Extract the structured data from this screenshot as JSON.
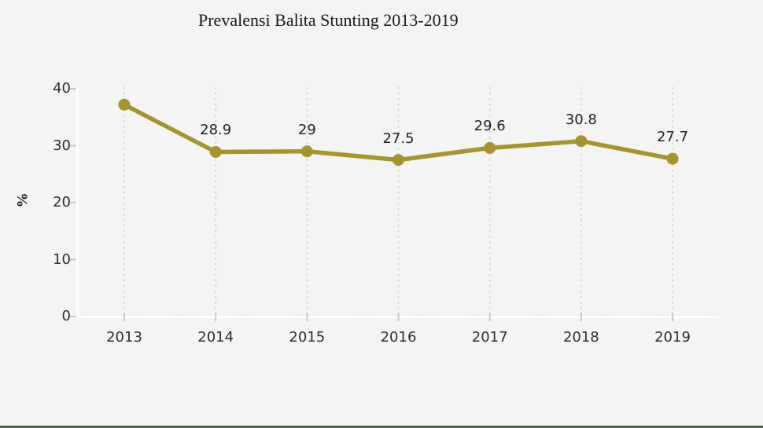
{
  "page": {
    "background_color": "#f4f4f2",
    "bottom_border_color": "#4a614d"
  },
  "chart_data": {
    "type": "line",
    "title": "Prevalensi Balita Stunting 2013-2019",
    "xlabel": "",
    "ylabel": "%",
    "x": [
      "2013",
      "2014",
      "2015",
      "2016",
      "2017",
      "2018",
      "2019"
    ],
    "values": [
      37.2,
      28.9,
      29,
      27.5,
      29.6,
      30.8,
      27.7
    ],
    "data_labels": [
      "",
      "28.9",
      "29",
      "27.5",
      "29.6",
      "30.8",
      "27.7"
    ],
    "y_ticks": [
      0,
      10,
      20,
      30,
      40
    ],
    "ylim": [
      0,
      40
    ],
    "grid": "vertical-dashed",
    "legend": "none",
    "line_color": "#a49432",
    "marker": "circle",
    "grid_color": "#d8d8d6",
    "axis_color": "#ffffff",
    "tick_mark_color": "#c9c9c7"
  }
}
